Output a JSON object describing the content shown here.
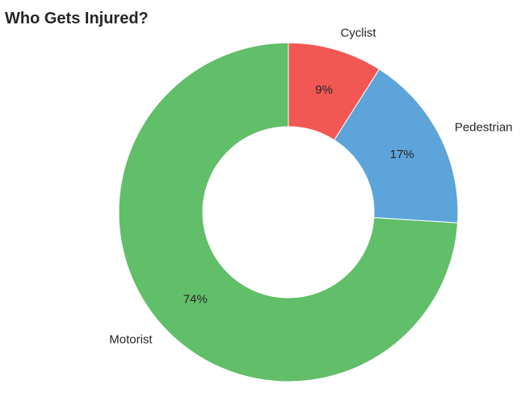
{
  "chart_data": {
    "type": "pie",
    "title": "Who Gets Injured?",
    "donut": true,
    "start_angle_deg": 90,
    "direction": "counterclockwise",
    "slices": [
      {
        "label": "Motorist",
        "value": 74,
        "pct_label": "74%",
        "color": "#61be69"
      },
      {
        "label": "Pedestrian",
        "value": 17,
        "pct_label": "17%",
        "color": "#5ca4da"
      },
      {
        "label": "Cyclist",
        "value": 9,
        "pct_label": "9%",
        "color": "#f15854"
      }
    ],
    "legend": "none"
  }
}
